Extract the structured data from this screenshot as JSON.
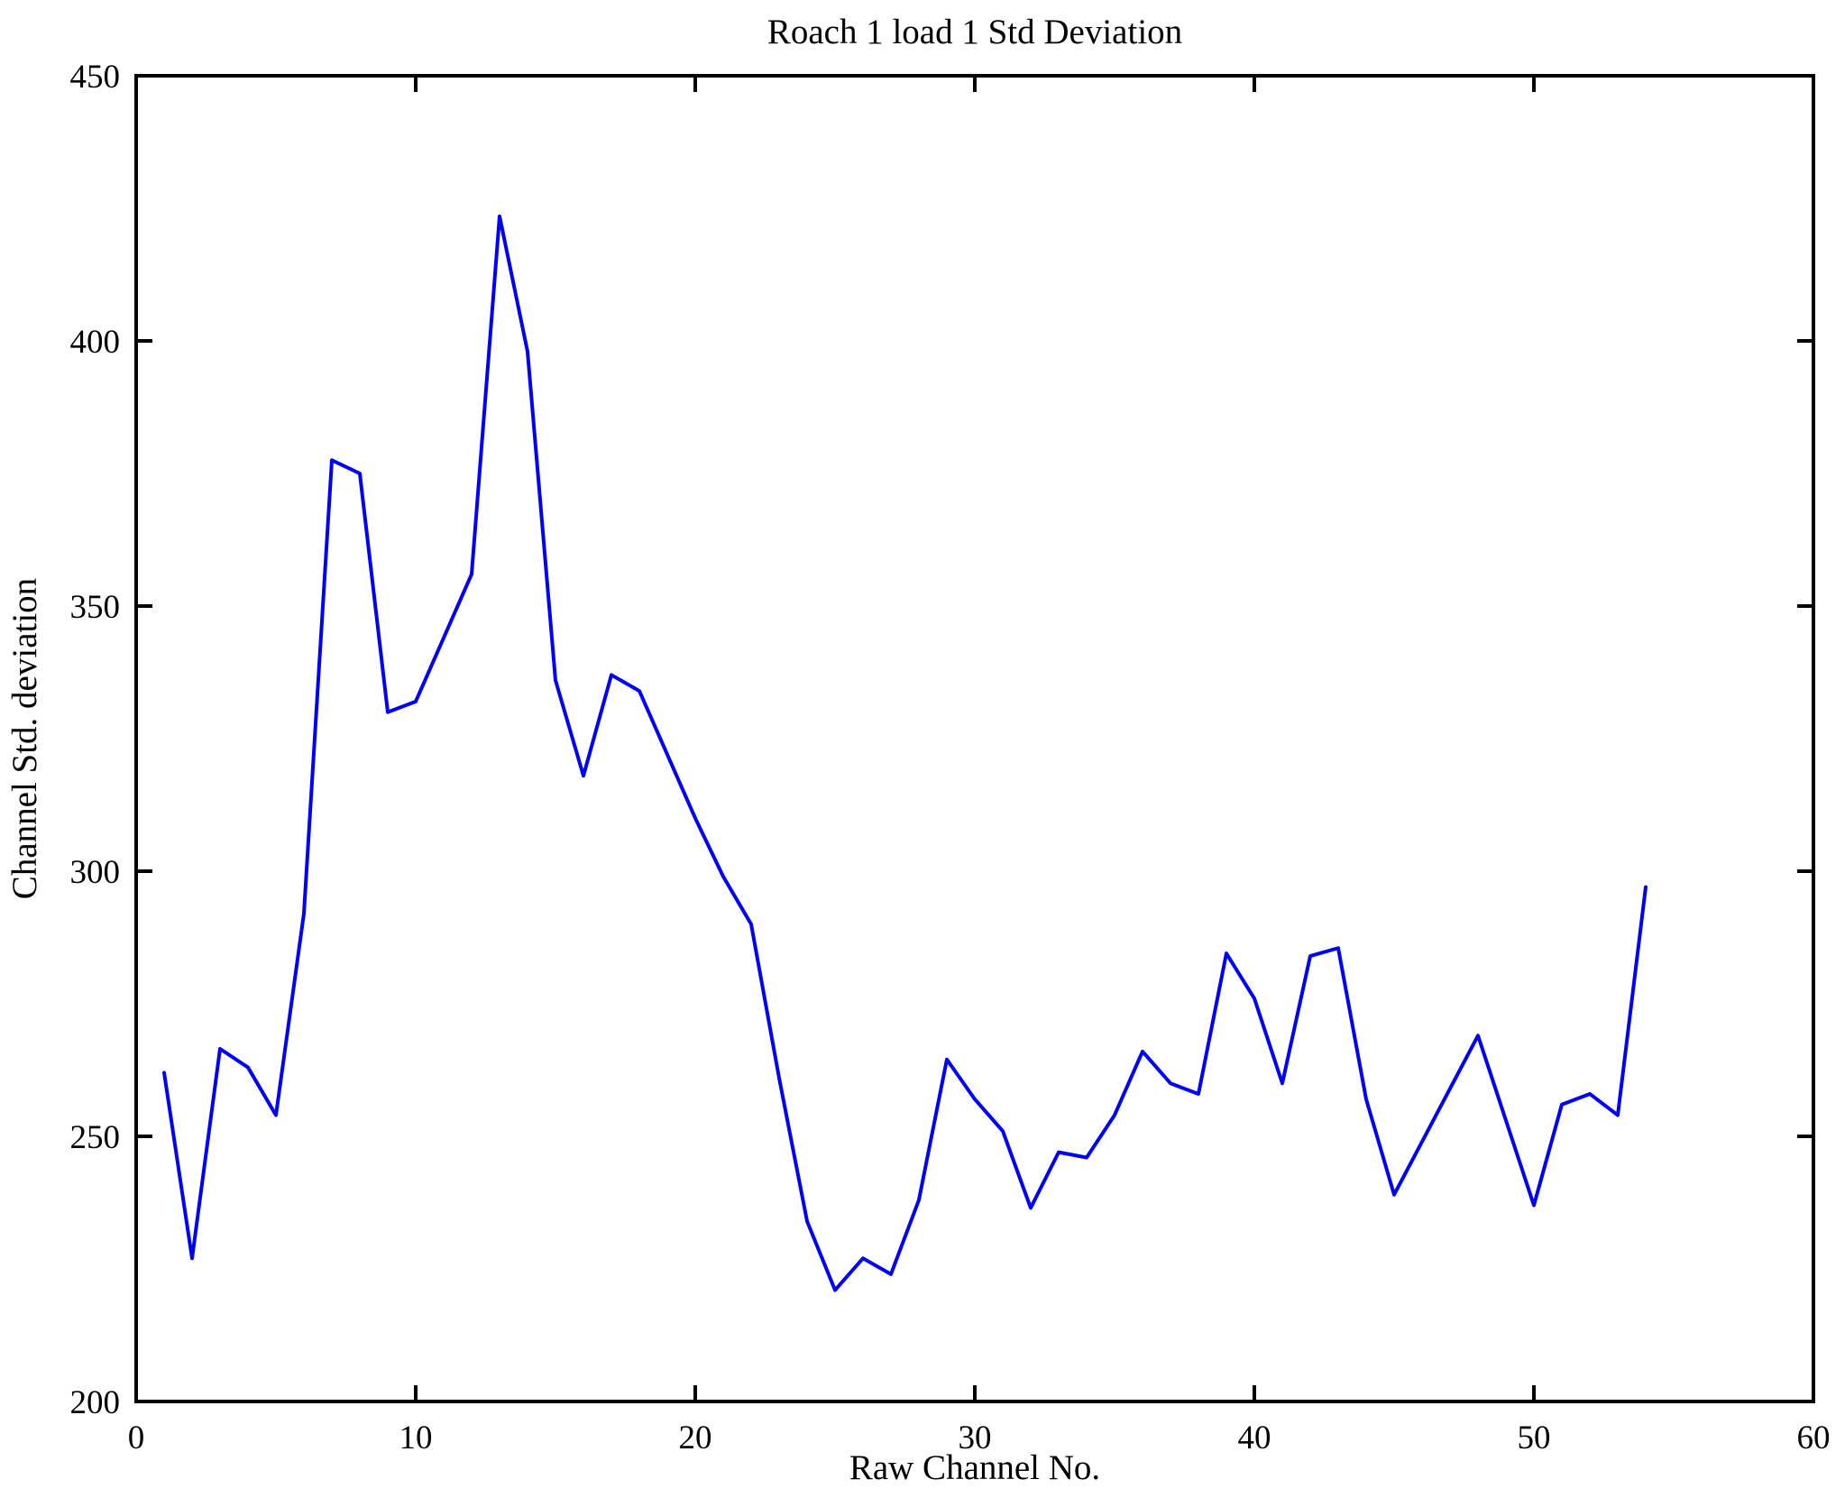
{
  "chart_data": {
    "type": "line",
    "title": "Roach 1 load 1 Std Deviation",
    "xlabel": "Raw Channel No.",
    "ylabel": "Channel Std. deviation",
    "xlim": [
      0,
      60
    ],
    "ylim": [
      200,
      450
    ],
    "xticks": [
      0,
      10,
      20,
      30,
      40,
      50,
      60
    ],
    "yticks": [
      200,
      250,
      300,
      350,
      400,
      450
    ],
    "grid": false,
    "legend": null,
    "box": true,
    "line_color": "#0000ff",
    "axis_color": "#000000",
    "background_color": "#ffffff",
    "series": [
      {
        "name": "channel-std-deviation",
        "x": [
          1,
          2,
          3,
          4,
          5,
          6,
          7,
          8,
          9,
          10,
          11,
          12,
          13,
          14,
          15,
          16,
          17,
          18,
          19,
          20,
          21,
          22,
          23,
          24,
          25,
          26,
          27,
          28,
          29,
          30,
          31,
          32,
          33,
          34,
          35,
          36,
          37,
          38,
          39,
          40,
          41,
          42,
          43,
          44,
          45,
          46,
          47,
          48,
          49,
          50,
          51,
          52,
          53,
          54
        ],
        "values": [
          262,
          227,
          266.5,
          263,
          254,
          292,
          377.5,
          375,
          330,
          332,
          344,
          356,
          423.5,
          398,
          336,
          318,
          337,
          334,
          322,
          310,
          299,
          290,
          261,
          234,
          221,
          227,
          224,
          238,
          264.5,
          257,
          251,
          236.5,
          247,
          246,
          254,
          266,
          260,
          258,
          284.5,
          276,
          260,
          284,
          285.5,
          257,
          239,
          249,
          259,
          269,
          253,
          237,
          256,
          258,
          254,
          297
        ]
      }
    ]
  }
}
